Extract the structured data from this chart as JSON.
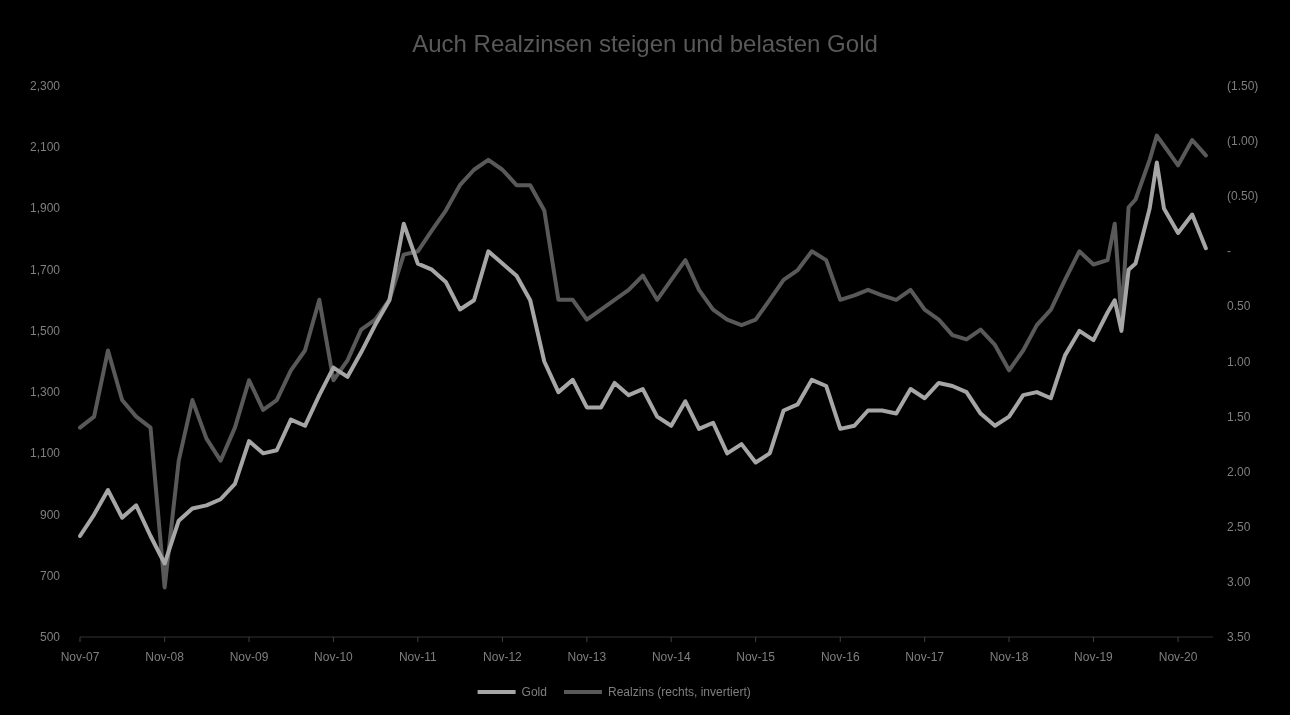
{
  "chart_data": {
    "type": "line",
    "title": "Auch Realzinsen steigen und belasten Gold",
    "legend": "bottom",
    "line_style": "solid",
    "x": [
      "2007-11",
      "2008-01",
      "2008-03",
      "2008-05",
      "2008-07",
      "2008-09",
      "2008-11",
      "2009-01",
      "2009-03",
      "2009-05",
      "2009-07",
      "2009-09",
      "2009-11",
      "2010-01",
      "2010-03",
      "2010-05",
      "2010-07",
      "2010-09",
      "2010-11",
      "2011-01",
      "2011-03",
      "2011-05",
      "2011-07",
      "2011-09",
      "2011-11",
      "2012-01",
      "2012-03",
      "2012-05",
      "2012-07",
      "2012-09",
      "2012-11",
      "2013-01",
      "2013-03",
      "2013-05",
      "2013-07",
      "2013-09",
      "2013-11",
      "2014-01",
      "2014-03",
      "2014-05",
      "2014-07",
      "2014-09",
      "2014-11",
      "2015-01",
      "2015-03",
      "2015-05",
      "2015-07",
      "2015-09",
      "2015-11",
      "2016-01",
      "2016-03",
      "2016-05",
      "2016-07",
      "2016-09",
      "2016-11",
      "2017-01",
      "2017-03",
      "2017-05",
      "2017-07",
      "2017-09",
      "2017-11",
      "2018-01",
      "2018-03",
      "2018-05",
      "2018-07",
      "2018-09",
      "2018-11",
      "2019-01",
      "2019-03",
      "2019-05",
      "2019-07",
      "2019-09",
      "2019-11",
      "2020-01",
      "2020-02",
      "2020-03",
      "2020-04",
      "2020-05",
      "2020-07",
      "2020-08",
      "2020-09",
      "2020-11",
      "2021-01",
      "2021-03"
    ],
    "series": [
      {
        "name": "Gold",
        "color": "#a6a6a6",
        "values": [
          830,
          900,
          980,
          890,
          930,
          830,
          740,
          880,
          920,
          930,
          950,
          1000,
          1140,
          1100,
          1110,
          1210,
          1190,
          1290,
          1380,
          1350,
          1430,
          1520,
          1600,
          1850,
          1720,
          1700,
          1660,
          1570,
          1600,
          1760,
          1720,
          1680,
          1600,
          1400,
          1300,
          1340,
          1250,
          1250,
          1330,
          1290,
          1310,
          1220,
          1190,
          1270,
          1180,
          1200,
          1100,
          1130,
          1070,
          1100,
          1240,
          1260,
          1340,
          1320,
          1180,
          1190,
          1240,
          1240,
          1230,
          1310,
          1280,
          1330,
          1320,
          1300,
          1230,
          1190,
          1220,
          1290,
          1300,
          1280,
          1420,
          1500,
          1470,
          1560,
          1600,
          1500,
          1700,
          1720,
          1900,
          2050,
          1900,
          1820,
          1880,
          1770
        ]
      },
      {
        "name": "Realzins (rechts, invertiert)",
        "color": "#595959",
        "axis": "y2",
        "values": [
          1.6,
          1.5,
          0.9,
          1.35,
          1.5,
          1.6,
          3.05,
          1.9,
          1.35,
          1.7,
          1.9,
          1.6,
          1.17,
          1.44,
          1.35,
          1.08,
          0.9,
          0.44,
          1.17,
          0.99,
          0.71,
          0.62,
          0.44,
          0.03,
          0,
          -0.19,
          -0.37,
          -0.6,
          -0.74,
          -0.83,
          -0.74,
          -0.6,
          -0.6,
          -0.37,
          0.44,
          0.44,
          0.62,
          0.53,
          0.44,
          0.35,
          0.22,
          0.44,
          0.26,
          0.08,
          0.35,
          0.53,
          0.62,
          0.67,
          0.62,
          0.44,
          0.26,
          0.17,
          0,
          0.08,
          0.44,
          0.4,
          0.35,
          0.4,
          0.44,
          0.35,
          0.53,
          0.62,
          0.76,
          0.8,
          0.71,
          0.85,
          1.08,
          0.9,
          0.67,
          0.53,
          0.26,
          0,
          0.12,
          0.08,
          -0.25,
          0.6,
          -0.4,
          -0.47,
          -0.83,
          -1.05,
          -0.96,
          -0.78,
          -1.01,
          -0.87
        ]
      }
    ],
    "xlim": [
      "2007-11",
      "2021-04"
    ],
    "xticks": [
      {
        "value": "2007-11",
        "label": "Nov-07"
      },
      {
        "value": "2008-11",
        "label": "Nov-08"
      },
      {
        "value": "2009-11",
        "label": "Nov-09"
      },
      {
        "value": "2010-11",
        "label": "Nov-10"
      },
      {
        "value": "2011-11",
        "label": "Nov-11"
      },
      {
        "value": "2012-11",
        "label": "Nov-12"
      },
      {
        "value": "2013-11",
        "label": "Nov-13"
      },
      {
        "value": "2014-11",
        "label": "Nov-14"
      },
      {
        "value": "2015-11",
        "label": "Nov-15"
      },
      {
        "value": "2016-11",
        "label": "Nov-16"
      },
      {
        "value": "2017-11",
        "label": "Nov-17"
      },
      {
        "value": "2018-11",
        "label": "Nov-18"
      },
      {
        "value": "2019-11",
        "label": "Nov-19"
      },
      {
        "value": "2020-11",
        "label": "Nov-20"
      }
    ],
    "ylim": [
      500,
      2300
    ],
    "yticks": [
      500,
      700,
      900,
      {
        "value": 1100,
        "label": "1,100"
      },
      {
        "value": 1300,
        "label": "1,300"
      },
      {
        "value": 1500,
        "label": "1,500"
      },
      {
        "value": 1700,
        "label": "1,700"
      },
      {
        "value": 1900,
        "label": "1,900"
      },
      {
        "value": 2100,
        "label": "2,100"
      },
      {
        "value": 2300,
        "label": "2,300"
      }
    ],
    "y2lim": [
      3.5,
      -1.5
    ],
    "y2ticks": [
      {
        "value": -1.5,
        "label": "(1.50)"
      },
      {
        "value": -1,
        "label": "(1.00)"
      },
      {
        "value": -0.5,
        "label": "(0.50)"
      },
      {
        "value": 0,
        "label": "-"
      },
      {
        "value": 0.5,
        "label": "0.50"
      },
      {
        "value": 1,
        "label": "1.00"
      },
      {
        "value": 1.5,
        "label": "1.50"
      },
      {
        "value": 2,
        "label": "2.00"
      },
      {
        "value": 2.5,
        "label": "2.50"
      },
      {
        "value": 3,
        "label": "3.00"
      },
      {
        "value": 3.5,
        "label": "3.50"
      }
    ]
  }
}
